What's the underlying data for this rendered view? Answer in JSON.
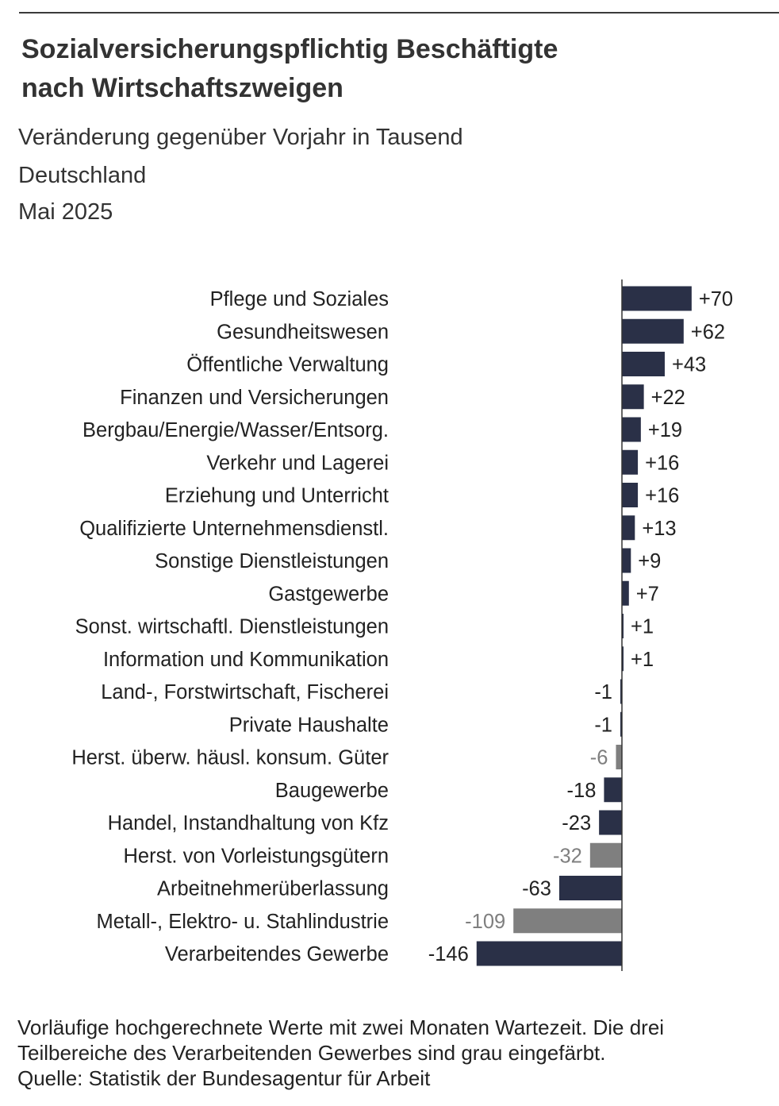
{
  "header": {
    "title_line1": "Sozialversicherungspflichtig Beschäftigte",
    "title_line2": "nach Wirtschaftszweigen",
    "subtitle": "Veränderung gegenüber Vorjahr in Tausend",
    "region": "Deutschland",
    "date": "Mai 2025"
  },
  "colors": {
    "main_bar": "#2a3047",
    "grey_bar": "#7f7f7f",
    "grey_label": "#7f7f7f",
    "text": "#222222"
  },
  "chart_data": {
    "type": "bar",
    "orientation": "horizontal",
    "title": "Sozialversicherungspflichtig Beschäftigte nach Wirtschaftszweigen",
    "xlabel": "",
    "ylabel": "",
    "unit": "Veränderung gegenüber Vorjahr in Tausend",
    "xlim": [
      -146,
      70
    ],
    "grid": false,
    "categories": [
      "Pflege und Soziales",
      "Gesundheitswesen",
      "Öffentliche Verwaltung",
      "Finanzen und Versicherungen",
      "Bergbau/Energie/Wasser/Entsorg.",
      "Verkehr und Lagerei",
      "Erziehung und Unterricht",
      "Qualifizierte Unternehmensdienstl.",
      "Sonstige Dienstleistungen",
      "Gastgewerbe",
      "Sonst. wirtschaftl. Dienstleistungen",
      "Information und Kommunikation",
      "Land-, Forstwirtschaft, Fischerei",
      "Private Haushalte",
      "Herst. überw. häusl. konsum. Güter",
      "Baugewerbe",
      "Handel, Instandhaltung von Kfz",
      "Herst. von Vorleistungsgütern",
      "Arbeitnehmerüberlassung",
      "Metall-, Elektro- u. Stahlindustrie",
      "Verarbeitendes Gewerbe"
    ],
    "values": [
      70,
      62,
      43,
      22,
      19,
      16,
      16,
      13,
      9,
      7,
      1,
      1,
      -1,
      -1,
      -6,
      -18,
      -23,
      -32,
      -63,
      -109,
      -146
    ],
    "value_labels": [
      "+70",
      "+62",
      "+43",
      "+22",
      "+19",
      "+16",
      "+16",
      "+13",
      "+9",
      "+7",
      "+1",
      "+1",
      "-1",
      "-1",
      "-6",
      "-18",
      "-23",
      "-32",
      "-63",
      "-109",
      "-146"
    ],
    "grey_subsectors": [
      false,
      false,
      false,
      false,
      false,
      false,
      false,
      false,
      false,
      false,
      false,
      false,
      false,
      false,
      true,
      false,
      false,
      true,
      false,
      true,
      false
    ]
  },
  "footnote": {
    "line1": "Vorläufige hochgerechnete Werte mit zwei Monaten Wartezeit. Die drei",
    "line2": "Teilbereiche des Verarbeitenden Gewerbes sind grau eingefärbt.",
    "line3": "Quelle: Statistik der Bundesagentur für Arbeit"
  }
}
